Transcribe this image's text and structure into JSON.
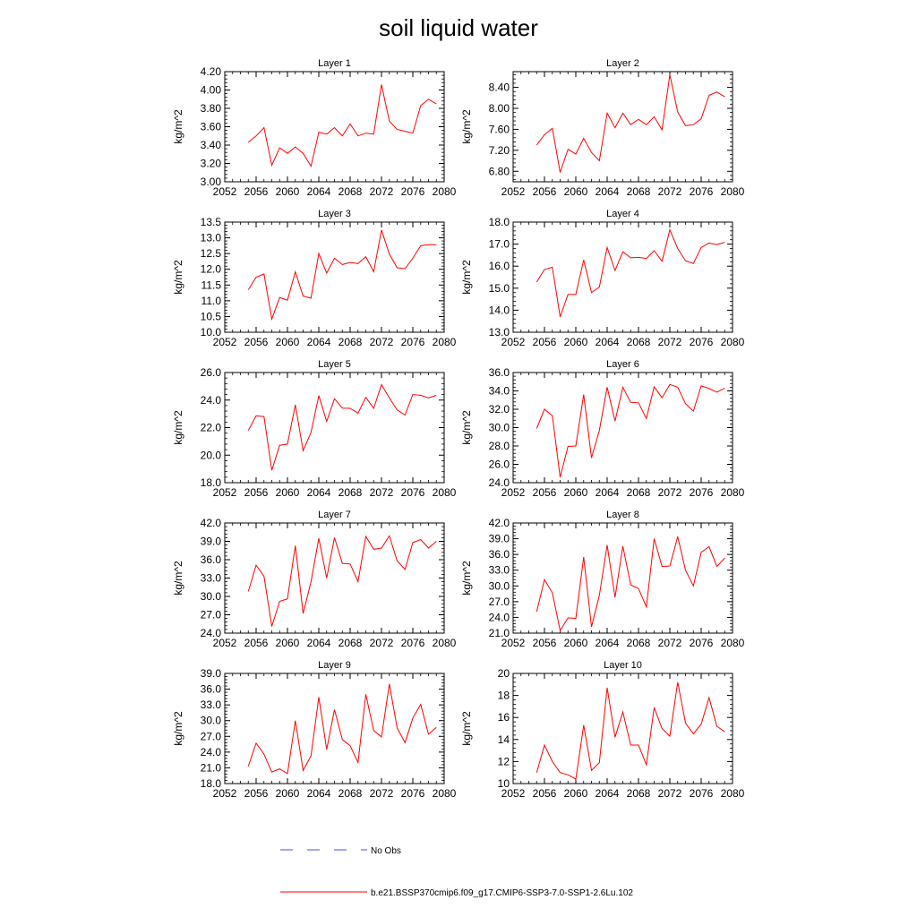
{
  "figure": {
    "title": "soil liquid water",
    "legend": [
      {
        "label": "No Obs",
        "color": "#4a4aff",
        "style": "dashed"
      },
      {
        "label": "b.e21.BSSP370cmip6.f09_g17.CMIP6-SSP3-7.0-SSP1-2.6Lu.102",
        "color": "#ff0000",
        "style": "solid"
      }
    ]
  },
  "chart_data": [
    {
      "type": "line",
      "title": "Layer 1",
      "ylabel": "kg/m^2",
      "xlim": [
        2052,
        2080
      ],
      "xticks": [
        2052,
        2056,
        2060,
        2064,
        2068,
        2072,
        2076,
        2080
      ],
      "ylim": [
        3.0,
        4.2
      ],
      "yticks": [
        "3.00",
        "3.20",
        "3.40",
        "3.60",
        "3.80",
        "4.00",
        "4.20"
      ],
      "series": [
        {
          "color": "#ff0000",
          "x": [
            2055,
            2056,
            2057,
            2058,
            2059,
            2060,
            2061,
            2062,
            2063,
            2064,
            2065,
            2066,
            2067,
            2068,
            2069,
            2070,
            2071,
            2072,
            2073,
            2074,
            2075,
            2076,
            2077,
            2078,
            2079
          ],
          "values": [
            3.43,
            3.5,
            3.59,
            3.18,
            3.37,
            3.31,
            3.38,
            3.31,
            3.17,
            3.54,
            3.52,
            3.59,
            3.5,
            3.63,
            3.5,
            3.53,
            3.52,
            4.06,
            3.66,
            3.57,
            3.55,
            3.53,
            3.83,
            3.9,
            3.85
          ]
        }
      ]
    },
    {
      "type": "line",
      "title": "Layer 2",
      "ylabel": "kg/m^2",
      "xlim": [
        2052,
        2080
      ],
      "xticks": [
        2052,
        2056,
        2060,
        2064,
        2068,
        2072,
        2076,
        2080
      ],
      "ylim": [
        6.6,
        8.7
      ],
      "yticks": [
        "6.80",
        "7.20",
        "7.60",
        "8.00",
        "8.40"
      ],
      "series": [
        {
          "color": "#ff0000",
          "x": [
            2055,
            2056,
            2057,
            2058,
            2059,
            2060,
            2061,
            2062,
            2063,
            2064,
            2065,
            2066,
            2067,
            2068,
            2069,
            2070,
            2071,
            2072,
            2073,
            2074,
            2075,
            2076,
            2077,
            2078,
            2079
          ],
          "values": [
            7.3,
            7.5,
            7.62,
            6.78,
            7.22,
            7.13,
            7.43,
            7.16,
            7.0,
            7.91,
            7.63,
            7.91,
            7.69,
            7.79,
            7.69,
            7.84,
            7.59,
            8.64,
            7.93,
            7.67,
            7.69,
            7.8,
            8.25,
            8.31,
            8.22
          ]
        }
      ]
    },
    {
      "type": "line",
      "title": "Layer 3",
      "ylabel": "kg/m^2",
      "xlim": [
        2052,
        2080
      ],
      "xticks": [
        2052,
        2056,
        2060,
        2064,
        2068,
        2072,
        2076,
        2080
      ],
      "ylim": [
        10.0,
        13.5
      ],
      "yticks": [
        "10.0",
        "10.5",
        "11.0",
        "11.5",
        "12.0",
        "12.5",
        "13.0",
        "13.5"
      ],
      "series": [
        {
          "color": "#ff0000",
          "x": [
            2055,
            2056,
            2057,
            2058,
            2059,
            2060,
            2061,
            2062,
            2063,
            2064,
            2065,
            2066,
            2067,
            2068,
            2069,
            2070,
            2071,
            2072,
            2073,
            2074,
            2075,
            2076,
            2077,
            2078,
            2079
          ],
          "values": [
            11.35,
            11.75,
            11.85,
            10.42,
            11.1,
            11.02,
            11.92,
            11.15,
            11.08,
            12.5,
            11.88,
            12.35,
            12.15,
            12.22,
            12.18,
            12.4,
            11.92,
            13.25,
            12.48,
            12.05,
            12.02,
            12.35,
            12.75,
            12.78,
            12.78
          ]
        }
      ]
    },
    {
      "type": "line",
      "title": "Layer 4",
      "ylabel": "kg/m^2",
      "xlim": [
        2052,
        2080
      ],
      "xticks": [
        2052,
        2056,
        2060,
        2064,
        2068,
        2072,
        2076,
        2080
      ],
      "ylim": [
        13.0,
        18.0
      ],
      "yticks": [
        "13.0",
        "14.0",
        "15.0",
        "16.0",
        "17.0",
        "18.0"
      ],
      "series": [
        {
          "color": "#ff0000",
          "x": [
            2055,
            2056,
            2057,
            2058,
            2059,
            2060,
            2061,
            2062,
            2063,
            2064,
            2065,
            2066,
            2067,
            2068,
            2069,
            2070,
            2071,
            2072,
            2073,
            2074,
            2075,
            2076,
            2077,
            2078,
            2079
          ],
          "values": [
            15.28,
            15.85,
            15.95,
            13.7,
            14.72,
            14.72,
            16.28,
            14.8,
            15.05,
            16.85,
            15.8,
            16.65,
            16.38,
            16.4,
            16.35,
            16.7,
            16.22,
            17.65,
            16.8,
            16.25,
            16.12,
            16.85,
            17.05,
            16.98,
            17.08
          ]
        }
      ]
    },
    {
      "type": "line",
      "title": "Layer 5",
      "ylabel": "kg/m^2",
      "xlim": [
        2052,
        2080
      ],
      "xticks": [
        2052,
        2056,
        2060,
        2064,
        2068,
        2072,
        2076,
        2080
      ],
      "ylim": [
        18.0,
        26.0
      ],
      "yticks": [
        "18.0",
        "20.0",
        "22.0",
        "24.0",
        "26.0"
      ],
      "series": [
        {
          "color": "#ff0000",
          "x": [
            2055,
            2056,
            2057,
            2058,
            2059,
            2060,
            2061,
            2062,
            2063,
            2064,
            2065,
            2066,
            2067,
            2068,
            2069,
            2070,
            2071,
            2072,
            2073,
            2074,
            2075,
            2076,
            2077,
            2078,
            2079
          ],
          "values": [
            21.8,
            22.85,
            22.8,
            18.9,
            20.72,
            20.8,
            23.65,
            20.32,
            21.65,
            24.32,
            22.45,
            24.1,
            23.42,
            23.4,
            23.05,
            24.2,
            23.4,
            25.12,
            24.15,
            23.28,
            22.92,
            24.4,
            24.35,
            24.15,
            24.35
          ]
        }
      ]
    },
    {
      "type": "line",
      "title": "Layer 6",
      "ylabel": "kg/m^2",
      "xlim": [
        2052,
        2080
      ],
      "xticks": [
        2052,
        2056,
        2060,
        2064,
        2068,
        2072,
        2076,
        2080
      ],
      "ylim": [
        24.0,
        36.0
      ],
      "yticks": [
        "24.0",
        "26.0",
        "28.0",
        "30.0",
        "32.0",
        "34.0",
        "36.0"
      ],
      "series": [
        {
          "color": "#ff0000",
          "x": [
            2055,
            2056,
            2057,
            2058,
            2059,
            2060,
            2061,
            2062,
            2063,
            2064,
            2065,
            2066,
            2067,
            2068,
            2069,
            2070,
            2071,
            2072,
            2073,
            2074,
            2075,
            2076,
            2077,
            2078,
            2079
          ],
          "values": [
            29.9,
            32.0,
            31.3,
            24.6,
            27.95,
            28.0,
            33.6,
            26.7,
            29.7,
            34.4,
            30.7,
            34.4,
            32.75,
            32.7,
            31.0,
            34.45,
            33.25,
            34.7,
            34.4,
            32.6,
            31.8,
            34.55,
            34.25,
            33.85,
            34.3
          ]
        }
      ]
    },
    {
      "type": "line",
      "title": "Layer 7",
      "ylabel": "kg/m^2",
      "xlim": [
        2052,
        2080
      ],
      "xticks": [
        2052,
        2056,
        2060,
        2064,
        2068,
        2072,
        2076,
        2080
      ],
      "ylim": [
        24.0,
        42.0
      ],
      "yticks": [
        "24.0",
        "27.0",
        "30.0",
        "33.0",
        "36.0",
        "39.0",
        "42.0"
      ],
      "series": [
        {
          "color": "#ff0000",
          "x": [
            2055,
            2056,
            2057,
            2058,
            2059,
            2060,
            2061,
            2062,
            2063,
            2064,
            2065,
            2066,
            2067,
            2068,
            2069,
            2070,
            2071,
            2072,
            2073,
            2074,
            2075,
            2076,
            2077,
            2078,
            2079
          ],
          "values": [
            30.8,
            35.1,
            33.3,
            25.1,
            29.2,
            29.6,
            38.3,
            27.2,
            32.4,
            39.5,
            33.0,
            39.6,
            35.4,
            35.3,
            32.4,
            39.8,
            37.7,
            37.9,
            39.9,
            35.8,
            34.4,
            38.8,
            39.3,
            37.9,
            39.0
          ]
        }
      ]
    },
    {
      "type": "line",
      "title": "Layer 8",
      "ylabel": "kg/m^2",
      "xlim": [
        2052,
        2080
      ],
      "xticks": [
        2052,
        2056,
        2060,
        2064,
        2068,
        2072,
        2076,
        2080
      ],
      "ylim": [
        21.0,
        42.0
      ],
      "yticks": [
        "21.0",
        "24.0",
        "27.0",
        "30.0",
        "33.0",
        "36.0",
        "39.0",
        "42.0"
      ],
      "series": [
        {
          "color": "#ff0000",
          "x": [
            2055,
            2056,
            2057,
            2058,
            2059,
            2060,
            2061,
            2062,
            2063,
            2064,
            2065,
            2066,
            2067,
            2068,
            2069,
            2070,
            2071,
            2072,
            2073,
            2074,
            2075,
            2076,
            2077,
            2078,
            2079
          ],
          "values": [
            25.1,
            31.2,
            28.7,
            21.5,
            23.9,
            23.8,
            35.5,
            22.2,
            28.2,
            37.8,
            27.8,
            37.6,
            30.2,
            29.5,
            26.0,
            39.0,
            33.7,
            33.8,
            39.4,
            33.0,
            30.0,
            36.4,
            37.5,
            33.7,
            35.3
          ]
        }
      ]
    },
    {
      "type": "line",
      "title": "Layer 9",
      "ylabel": "kg/m^2",
      "xlim": [
        2052,
        2080
      ],
      "xticks": [
        2052,
        2056,
        2060,
        2064,
        2068,
        2072,
        2076,
        2080
      ],
      "ylim": [
        18.0,
        39.0
      ],
      "yticks": [
        "18.0",
        "21.0",
        "24.0",
        "27.0",
        "30.0",
        "33.0",
        "36.0",
        "39.0"
      ],
      "series": [
        {
          "color": "#ff0000",
          "x": [
            2055,
            2056,
            2057,
            2058,
            2059,
            2060,
            2061,
            2062,
            2063,
            2064,
            2065,
            2066,
            2067,
            2068,
            2069,
            2070,
            2071,
            2072,
            2073,
            2074,
            2075,
            2076,
            2077,
            2078,
            2079
          ],
          "values": [
            21.3,
            25.7,
            23.6,
            20.2,
            20.8,
            19.9,
            30.0,
            20.5,
            23.3,
            34.5,
            24.5,
            32.1,
            26.4,
            25.2,
            22.0,
            35.0,
            28.1,
            26.9,
            37.0,
            28.6,
            25.8,
            30.5,
            33.1,
            27.4,
            28.7
          ]
        }
      ]
    },
    {
      "type": "line",
      "title": "Layer 10",
      "ylabel": "kg/m^2",
      "xlim": [
        2052,
        2080
      ],
      "xticks": [
        2052,
        2056,
        2060,
        2064,
        2068,
        2072,
        2076,
        2080
      ],
      "ylim": [
        10,
        20
      ],
      "yticks": [
        "10",
        "12",
        "14",
        "16",
        "18",
        "20"
      ],
      "series": [
        {
          "color": "#ff0000",
          "x": [
            2055,
            2056,
            2057,
            2058,
            2059,
            2060,
            2061,
            2062,
            2063,
            2064,
            2065,
            2066,
            2067,
            2068,
            2069,
            2070,
            2071,
            2072,
            2073,
            2074,
            2075,
            2076,
            2077,
            2078,
            2079
          ],
          "values": [
            11.0,
            13.5,
            12.0,
            11.0,
            10.8,
            10.4,
            15.3,
            11.2,
            11.9,
            18.7,
            14.2,
            16.5,
            13.5,
            13.5,
            11.7,
            16.9,
            15.0,
            14.3,
            19.2,
            15.5,
            14.5,
            15.4,
            17.8,
            15.2,
            14.7
          ]
        }
      ]
    }
  ]
}
